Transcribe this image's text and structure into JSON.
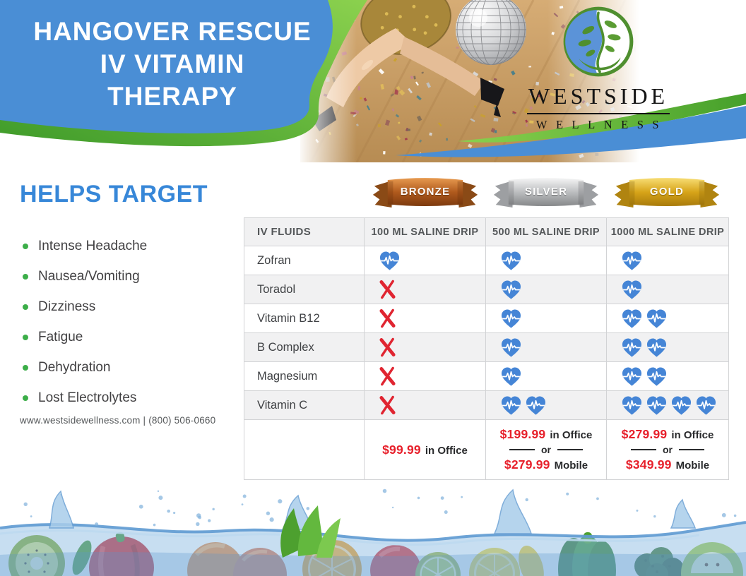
{
  "header": {
    "title_lines": [
      "HANGOVER RESCUE",
      "IV  VITAMIN",
      "THERAPY"
    ],
    "logo_name": "WESTSIDE",
    "logo_sub": "WELLNESS"
  },
  "helps": {
    "heading": "HELPS TARGET",
    "items": [
      "Intense Headache",
      "Nausea/Vomiting",
      "Dizziness",
      "Fatigue",
      "Dehydration",
      "Lost Electrolytes"
    ],
    "contact": "www.westsidewellness.com | (800) 506-0660"
  },
  "tiers": [
    {
      "id": "bronze",
      "label": "BRONZE",
      "color": "#b05a1d"
    },
    {
      "id": "silver",
      "label": "SILVER",
      "color": "#bcbec0"
    },
    {
      "id": "gold",
      "label": "GOLD",
      "color": "#d7a419"
    }
  ],
  "table": {
    "columns": [
      "IV FLUIDS",
      "100 ML SALINE DRIP",
      "500 ML SALINE DRIP",
      "1000 ML SALINE DRIP"
    ],
    "legend": {
      "heart": "included (hearts show relative dose)",
      "x": "not included"
    },
    "rows": [
      {
        "label": "Zofran",
        "cells": [
          1,
          1,
          1
        ]
      },
      {
        "label": "Toradol",
        "cells": [
          "x",
          1,
          1
        ]
      },
      {
        "label": "Vitamin B12",
        "cells": [
          "x",
          1,
          2
        ]
      },
      {
        "label": "B Complex",
        "cells": [
          "x",
          1,
          2
        ]
      },
      {
        "label": "Magnesium",
        "cells": [
          "x",
          1,
          2
        ]
      },
      {
        "label": "Vitamin C",
        "cells": [
          "x",
          2,
          4
        ]
      }
    ],
    "pricing": [
      {
        "tier": "bronze",
        "lines": [
          {
            "price": "$99.99",
            "suffix": "in Office"
          }
        ]
      },
      {
        "tier": "silver",
        "lines": [
          {
            "price": "$199.99",
            "suffix": "in Office"
          },
          {
            "or": "or"
          },
          {
            "price": "$279.99",
            "suffix": "Mobile"
          }
        ]
      },
      {
        "tier": "gold",
        "lines": [
          {
            "price": "$279.99",
            "suffix": "in Office"
          },
          {
            "or": "or"
          },
          {
            "price": "$349.99",
            "suffix": "Mobile"
          }
        ]
      }
    ]
  },
  "colors": {
    "header_blue": "#4a8ed5",
    "wave_green": "#6fbe3e",
    "heading_blue": "#3787d8",
    "bullet_green": "#3cae49",
    "heart_blue": "#4585d6",
    "x_red": "#e02531",
    "price_red": "#e7202b",
    "table_border": "#d2d3d5",
    "row_alt_bg": "#f1f1f2"
  }
}
